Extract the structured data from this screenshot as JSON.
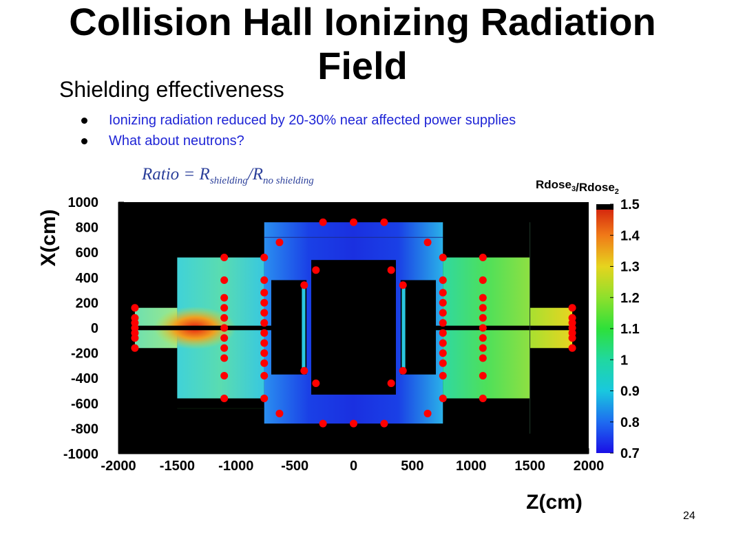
{
  "slide": {
    "title_line1": "Collision Hall Ionizing Radiation",
    "title_line2": "Field",
    "bullet": "Shielding effectiveness",
    "sub_bullets": [
      "Ionizing radiation reduced by 20-30% near affected power supplies",
      "What about neutrons?"
    ],
    "formula": {
      "prefix": "Ratio = R",
      "sub1": "shielding",
      "slash": "/R",
      "sub2": "no shielding"
    },
    "page_number": "24"
  },
  "chart_data": {
    "type": "heatmap",
    "title": "",
    "xlabel": "Z(cm)",
    "ylabel": "X(cm)",
    "xlim": [
      -2000,
      2000
    ],
    "ylim": [
      -1000,
      1000
    ],
    "x_ticks": [
      "-2000",
      "-1500",
      "-1000",
      "-500",
      "0",
      "500",
      "1000",
      "1500",
      "2000"
    ],
    "y_ticks": [
      "1000",
      "800",
      "600",
      "400",
      "200",
      "0",
      "-200",
      "-400",
      "-600",
      "-800",
      "-1000"
    ],
    "colorbar": {
      "label": "Rdose3/Rdose2",
      "label_main": "Rdose",
      "label_sub1": "3",
      "label_sep": "/Rdose",
      "label_sub2": "2",
      "range": [
        0.7,
        1.5
      ],
      "ticks": [
        "1.5",
        "1.4",
        "1.3",
        "1.2",
        "1.1",
        "1",
        "0.9",
        "0.8",
        "0.7"
      ]
    },
    "marker_color": "#ff0000",
    "measurement_points": [
      [
        -1860,
        160
      ],
      [
        -1860,
        80
      ],
      [
        -1860,
        40
      ],
      [
        -1860,
        0
      ],
      [
        -1860,
        -40
      ],
      [
        -1860,
        -80
      ],
      [
        -1860,
        -160
      ],
      [
        -1100,
        560
      ],
      [
        -1100,
        380
      ],
      [
        -1100,
        240
      ],
      [
        -1100,
        160
      ],
      [
        -1100,
        80
      ],
      [
        -1100,
        0
      ],
      [
        -1100,
        -80
      ],
      [
        -1100,
        -160
      ],
      [
        -1100,
        -240
      ],
      [
        -1100,
        -380
      ],
      [
        -1100,
        -560
      ],
      [
        -760,
        560
      ],
      [
        -760,
        380
      ],
      [
        -760,
        280
      ],
      [
        -760,
        200
      ],
      [
        -760,
        120
      ],
      [
        -760,
        40
      ],
      [
        -760,
        -40
      ],
      [
        -760,
        -120
      ],
      [
        -760,
        -200
      ],
      [
        -760,
        -280
      ],
      [
        -760,
        -380
      ],
      [
        -760,
        -560
      ],
      [
        -630,
        680
      ],
      [
        -630,
        -680
      ],
      [
        -260,
        840
      ],
      [
        0,
        840
      ],
      [
        260,
        840
      ],
      [
        -260,
        -760
      ],
      [
        0,
        -760
      ],
      [
        260,
        -760
      ],
      [
        -420,
        340
      ],
      [
        -420,
        -340
      ],
      [
        420,
        340
      ],
      [
        420,
        -340
      ],
      [
        -320,
        -440
      ],
      [
        320,
        -440
      ],
      [
        -320,
        460
      ],
      [
        320,
        460
      ],
      [
        630,
        680
      ],
      [
        630,
        -680
      ],
      [
        760,
        560
      ],
      [
        760,
        380
      ],
      [
        760,
        280
      ],
      [
        760,
        200
      ],
      [
        760,
        120
      ],
      [
        760,
        40
      ],
      [
        760,
        -40
      ],
      [
        760,
        -120
      ],
      [
        760,
        -200
      ],
      [
        760,
        -280
      ],
      [
        760,
        -380
      ],
      [
        760,
        -560
      ],
      [
        1100,
        560
      ],
      [
        1100,
        380
      ],
      [
        1100,
        240
      ],
      [
        1100,
        160
      ],
      [
        1100,
        80
      ],
      [
        1100,
        0
      ],
      [
        1100,
        -80
      ],
      [
        1100,
        -160
      ],
      [
        1100,
        -240
      ],
      [
        1100,
        -380
      ],
      [
        1100,
        -560
      ],
      [
        1860,
        160
      ],
      [
        1860,
        80
      ],
      [
        1860,
        40
      ],
      [
        1860,
        0
      ],
      [
        1860,
        -40
      ],
      [
        1860,
        -80
      ],
      [
        1860,
        -160
      ]
    ]
  }
}
